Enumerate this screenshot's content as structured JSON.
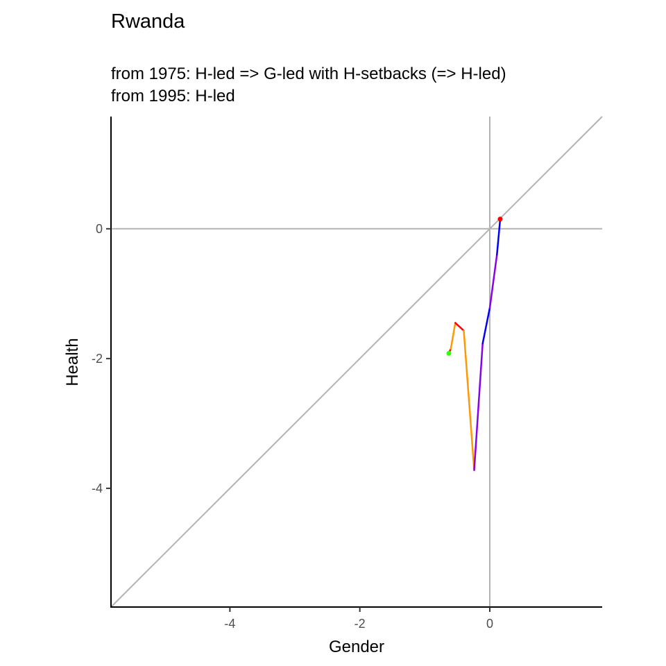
{
  "chart_data": {
    "type": "line",
    "title": "Rwanda",
    "subtitle_lines": [
      "from 1975:  H-led => G-led with H-setbacks (=> H-led)",
      "from 1995:  H-led"
    ],
    "xlabel": "Gender",
    "ylabel": "Health",
    "xlim": [
      -5.83,
      1.73
    ],
    "ylim": [
      -5.83,
      1.73
    ],
    "xticks": [
      -4,
      -2,
      0
    ],
    "yticks": [
      0,
      -2,
      -4
    ],
    "xtick_labels": [
      "-4",
      "-2",
      "0"
    ],
    "ytick_labels": [
      "0",
      "-2",
      "-4"
    ],
    "grid": false,
    "reference_lines": {
      "diagonal": true,
      "x_zero": true,
      "y_zero": true,
      "color": "#b3b3b3"
    },
    "path_segments": [
      {
        "color": "#ff0000",
        "points": [
          [
            -0.63,
            -1.92
          ],
          [
            -0.6,
            -1.85
          ]
        ]
      },
      {
        "color": "#ff9900",
        "points": [
          [
            -0.6,
            -1.85
          ],
          [
            -0.53,
            -1.45
          ]
        ]
      },
      {
        "color": "#ff0000",
        "points": [
          [
            -0.53,
            -1.45
          ],
          [
            -0.4,
            -1.57
          ]
        ]
      },
      {
        "color": "#ff9900",
        "points": [
          [
            -0.4,
            -1.57
          ],
          [
            -0.24,
            -3.72
          ]
        ]
      },
      {
        "color": "#8800ee",
        "points": [
          [
            -0.24,
            -3.72
          ],
          [
            -0.11,
            -1.77
          ]
        ]
      },
      {
        "color": "#0000ff",
        "points": [
          [
            -0.11,
            -1.77
          ],
          [
            0.0,
            -1.22
          ]
        ]
      },
      {
        "color": "#8800ee",
        "points": [
          [
            0.0,
            -1.22
          ],
          [
            0.11,
            -0.4
          ]
        ]
      },
      {
        "color": "#0000ff",
        "points": [
          [
            0.11,
            -0.4
          ],
          [
            0.16,
            0.15
          ]
        ]
      }
    ],
    "start_point": {
      "x": -0.63,
      "y": -1.92,
      "color": "#33ff00"
    },
    "end_point": {
      "x": 0.16,
      "y": 0.15,
      "color": "#ff0000"
    }
  }
}
